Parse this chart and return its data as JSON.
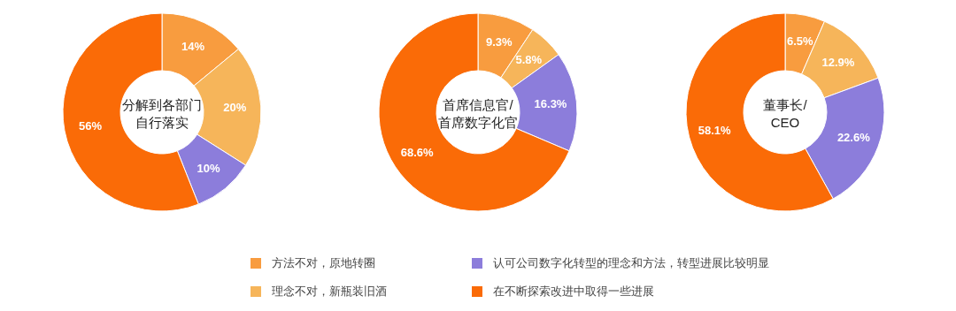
{
  "chart_data": [
    {
      "type": "donut",
      "title": "分解到各部门自行落实",
      "categories": [
        "方法不对，原地转圈",
        "理念不对，新瓶装旧酒",
        "认可公司数字化转型的理念和方法，转型进展比较明显",
        "在不断探索改进中取得一些进展"
      ],
      "values": [
        14,
        20,
        10,
        56
      ],
      "colors": [
        "#f89c3f",
        "#f6b55a",
        "#8c7ddb",
        "#fa6b07"
      ],
      "value_labels": [
        "14%",
        "20%",
        "10%",
        "56%"
      ],
      "legend": "bottom"
    },
    {
      "type": "donut",
      "title": "首席信息官/首席数字化官",
      "values": [
        9.3,
        5.8,
        16.3,
        68.6
      ],
      "colors": [
        "#f89c3f",
        "#f6b55a",
        "#8c7ddb",
        "#fa6b07"
      ],
      "value_labels": [
        "9.3%",
        "5.8%",
        "16.3%",
        "68.6%"
      ]
    },
    {
      "type": "donut",
      "title": "董事长/CEO",
      "values": [
        6.5,
        12.9,
        22.6,
        58.1
      ],
      "colors": [
        "#f89c3f",
        "#f6b55a",
        "#8c7ddb",
        "#fa6b07"
      ],
      "value_labels": [
        "6.5%",
        "12.9%",
        "22.6%",
        "58.1%"
      ]
    }
  ]
}
